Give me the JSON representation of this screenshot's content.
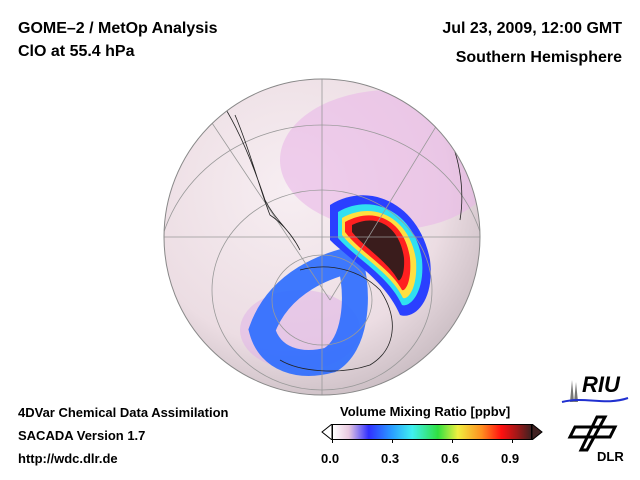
{
  "header": {
    "title": "GOME–2 / MetOp Analysis",
    "species": "ClO at 55.4 hPa",
    "datetime": "Jul 23, 2009, 12:00 GMT",
    "region": "Southern Hemisphere"
  },
  "footer": {
    "line1": "4DVar Chemical Data Assimilation",
    "line2": "SACADA Version 1.7",
    "url": "http://wdc.dlr.de"
  },
  "colorbar": {
    "title": "Volume Mixing Ratio [ppbv]",
    "ticks": [
      "0.0",
      "0.3",
      "0.6",
      "0.9"
    ],
    "colors": [
      "#ffffff",
      "#e8c8e0",
      "#3030ff",
      "#2aa0ff",
      "#40f0f0",
      "#30e040",
      "#f0f040",
      "#ff9020",
      "#ff1010",
      "#a01818",
      "#402020"
    ]
  },
  "logos": {
    "riu": "RIU",
    "dlr": "DLR"
  }
}
